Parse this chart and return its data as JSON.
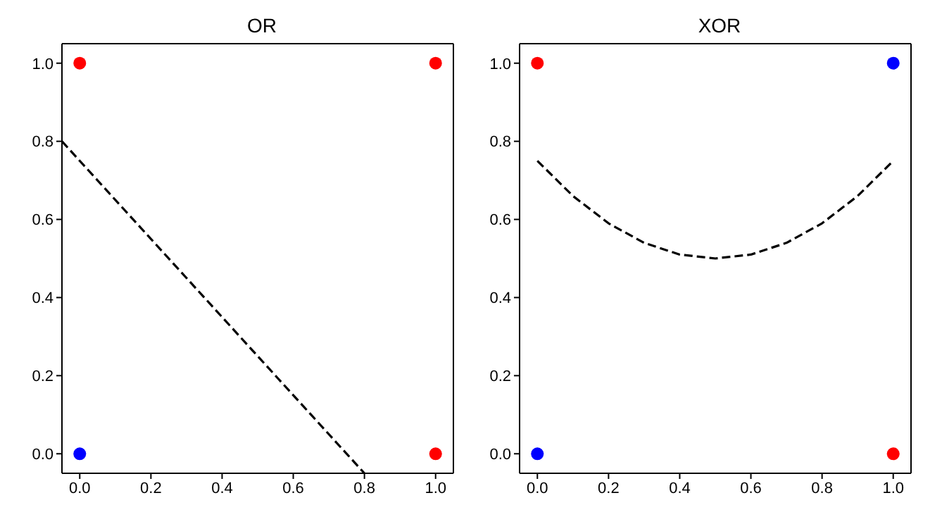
{
  "chart_data": [
    {
      "type": "scatter",
      "title": "OR",
      "xlim": [
        -0.05,
        1.05
      ],
      "ylim": [
        -0.05,
        1.05
      ],
      "xticks": [
        {
          "value": 0,
          "label": "0.0"
        },
        {
          "value": 0.2,
          "label": "0.2"
        },
        {
          "value": 0.4,
          "label": "0.4"
        },
        {
          "value": 0.6,
          "label": "0.6"
        },
        {
          "value": 0.8,
          "label": "0.8"
        },
        {
          "value": 1,
          "label": "1.0"
        }
      ],
      "yticks": [
        {
          "value": 0,
          "label": "0.0"
        },
        {
          "value": 0.2,
          "label": "0.2"
        },
        {
          "value": 0.4,
          "label": "0.4"
        },
        {
          "value": 0.6,
          "label": "0.6"
        },
        {
          "value": 0.8,
          "label": "0.8"
        },
        {
          "value": 1,
          "label": "1.0"
        }
      ],
      "grid": false,
      "marker": "circle",
      "series": [
        {
          "type": "scatter",
          "x": [
            0,
            0,
            1,
            1
          ],
          "values": [
            0,
            1,
            0,
            1
          ],
          "colors": [
            "#0000ff",
            "#ff0000",
            "#ff0000",
            "#ff0000"
          ]
        },
        {
          "type": "line",
          "x": [
            -0.05,
            0.8
          ],
          "values": [
            0.8,
            -0.05
          ],
          "color": "#000000",
          "line_style": "dashed",
          "marker": "none"
        }
      ]
    },
    {
      "type": "scatter",
      "title": "XOR",
      "xlim": [
        -0.05,
        1.05
      ],
      "ylim": [
        -0.05,
        1.05
      ],
      "xticks": [
        {
          "value": 0,
          "label": "0.0"
        },
        {
          "value": 0.2,
          "label": "0.2"
        },
        {
          "value": 0.4,
          "label": "0.4"
        },
        {
          "value": 0.6,
          "label": "0.6"
        },
        {
          "value": 0.8,
          "label": "0.8"
        },
        {
          "value": 1,
          "label": "1.0"
        }
      ],
      "yticks": [
        {
          "value": 0,
          "label": "0.0"
        },
        {
          "value": 0.2,
          "label": "0.2"
        },
        {
          "value": 0.4,
          "label": "0.4"
        },
        {
          "value": 0.6,
          "label": "0.6"
        },
        {
          "value": 0.8,
          "label": "0.8"
        },
        {
          "value": 1,
          "label": "1.0"
        }
      ],
      "grid": false,
      "marker": "circle",
      "series": [
        {
          "type": "scatter",
          "x": [
            0,
            0,
            1,
            1
          ],
          "values": [
            0,
            1,
            0,
            1
          ],
          "colors": [
            "#0000ff",
            "#ff0000",
            "#ff0000",
            "#0000ff"
          ]
        },
        {
          "type": "line",
          "x": [
            0,
            0.1,
            0.2,
            0.3,
            0.4,
            0.5,
            0.6,
            0.7,
            0.8,
            0.9,
            1
          ],
          "values": [
            0.75,
            0.66,
            0.59,
            0.54,
            0.51,
            0.5,
            0.51,
            0.54,
            0.59,
            0.66,
            0.75
          ],
          "color": "#000000",
          "line_style": "dashed",
          "marker": "none"
        }
      ]
    }
  ]
}
